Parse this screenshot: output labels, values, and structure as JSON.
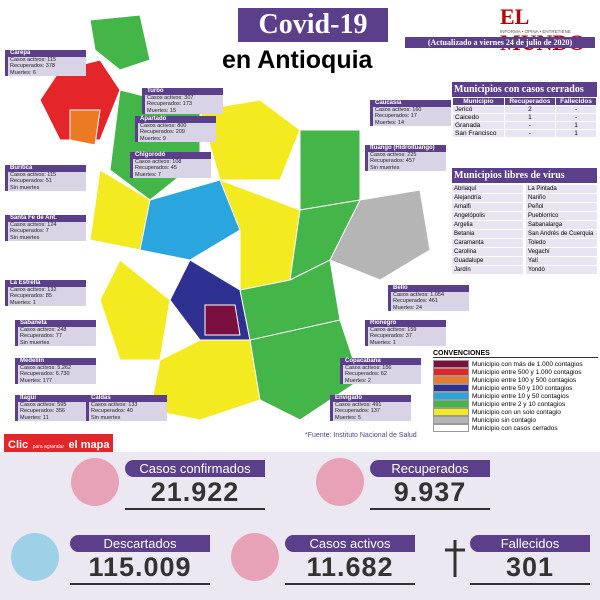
{
  "header": {
    "title": "Covid-19",
    "subtitle": "en Antioquia",
    "brand": "EL MUNDO",
    "brand_tagline": "INFORMA • OPINA • ENTRETIENE",
    "updated": "(Actualizado a viernes 24 de julio de 2020)"
  },
  "callouts": [
    {
      "name": "Carepa",
      "lines": [
        "Casos activos: 115",
        "Recuperados: 378",
        "Muertes: 6"
      ]
    },
    {
      "name": "Turbo",
      "lines": [
        "Casos activos: 307",
        "Recuperados: 173",
        "Muertes: 15"
      ]
    },
    {
      "name": "Apartadó",
      "lines": [
        "Casos activos: 800",
        "Recuperados: 209",
        "Muertes: 9"
      ]
    },
    {
      "name": "Chigorodó",
      "lines": [
        "Casos activos: 108",
        "Recuperados: 45",
        "Muertes: 7"
      ]
    },
    {
      "name": "Buriticá",
      "lines": [
        "Casos activos: 115",
        "Recuperados: 51",
        "Sin muertes"
      ]
    },
    {
      "name": "Santa Fe de Ant.",
      "lines": [
        "Casos activos: 124",
        "Recuperados: 7",
        "Sin muertes"
      ]
    },
    {
      "name": "La Estrella",
      "lines": [
        "Casos activos: 132",
        "Recuperados: 85",
        "Muertes: 1"
      ]
    },
    {
      "name": "Sabaneta",
      "lines": [
        "Casos activos: 248",
        "Recuperados: 77",
        "Sin muertes"
      ]
    },
    {
      "name": "Medellín",
      "lines": [
        "Casos activos: 5.262",
        "Recuperados: 6.730",
        "Muertes: 177"
      ]
    },
    {
      "name": "Itagüí",
      "lines": [
        "Casos activos: 595",
        "Recuperados: 356",
        "Muertes: 11"
      ]
    },
    {
      "name": "Caldas",
      "lines": [
        "Casos activos: 133",
        "Recuperados: 40",
        "Sin muertes"
      ]
    },
    {
      "name": "Envigado",
      "lines": [
        "Casos activos: 491",
        "Recuperados: 137",
        "Muertes: 5"
      ]
    },
    {
      "name": "Copacabana",
      "lines": [
        "Casos activos: 156",
        "Recuperados: 62",
        "Muertes: 2"
      ]
    },
    {
      "name": "Rionegro",
      "lines": [
        "Casos activos: 159",
        "Recuperados: 37",
        "Muertes: 1"
      ]
    },
    {
      "name": "Bello",
      "lines": [
        "Casos activos: 1.054",
        "Recuperados: 461",
        "Muertes: 24"
      ]
    },
    {
      "name": "Ituango (Hidroituango)",
      "lines": [
        "Casos activos: 225",
        "Recuperados: 457",
        "Sin muertes"
      ]
    },
    {
      "name": "Caucasia",
      "lines": [
        "Casos activos: 160",
        "Recuperados: 17",
        "Muertes: 14"
      ]
    }
  ],
  "closed": {
    "title": "Municipios con casos cerrados",
    "columns": [
      "Municipio",
      "Recuperados",
      "Fallecidos"
    ],
    "rows": [
      [
        "Jericó",
        "2",
        "-"
      ],
      [
        "Caicedo",
        "1",
        "-"
      ],
      [
        "Granada",
        "-",
        "1"
      ],
      [
        "San Francisco",
        "-",
        "1"
      ]
    ]
  },
  "free": {
    "title": "Municipios libres de virus",
    "col1": [
      "Abriaquí",
      "Alejandría",
      "Amalfi",
      "Angelópolis",
      "Argelia",
      "Betania",
      "Caramanta",
      "Carolina",
      "Guadalupe",
      "Jardín"
    ],
    "col2": [
      "La Pintada",
      "Nariño",
      "Peñol",
      "Pueblorrico",
      "Sabanalarga",
      "San Andrés de Cuerquia",
      "Toledo",
      "Vegachí",
      "Yalí",
      "Yondó"
    ]
  },
  "legend": {
    "title": "CONVENCIONES",
    "items": [
      {
        "label": "Municipio con más de 1.000 contagios",
        "color": "#7b1040"
      },
      {
        "label": "Municipio entre 500 y 1.000 contagios",
        "color": "#e4252a"
      },
      {
        "label": "Municipio entre 100 y 500 contagios",
        "color": "#ec7a23"
      },
      {
        "label": "Municipio entre 50 y 100 contagios",
        "color": "#2e3192"
      },
      {
        "label": "Municipio entre 10 y 50 contagios",
        "color": "#2aa5de"
      },
      {
        "label": "Municipio entre 2 y 10 contagios",
        "color": "#44b549"
      },
      {
        "label": "Municipio con un solo contagio",
        "color": "#f3ea1f"
      },
      {
        "label": "Municipio sin contagio",
        "color": "#b5b5b5"
      },
      {
        "label": "Municipio con casos cerrados",
        "color": "#ffffff"
      }
    ]
  },
  "source": "*Fuente: Instituto Nacional de Salud",
  "click": {
    "word": "Clic",
    "small": "para agrandar",
    "rest": "el mapa"
  },
  "stats": [
    {
      "label": "Casos confirmados",
      "value": "21.922"
    },
    {
      "label": "Recuperados",
      "value": "9.937"
    },
    {
      "label": "Descartados",
      "value": "115.009"
    },
    {
      "label": "Casos activos",
      "value": "11.682"
    },
    {
      "label": "Fallecidos",
      "value": "301"
    }
  ]
}
